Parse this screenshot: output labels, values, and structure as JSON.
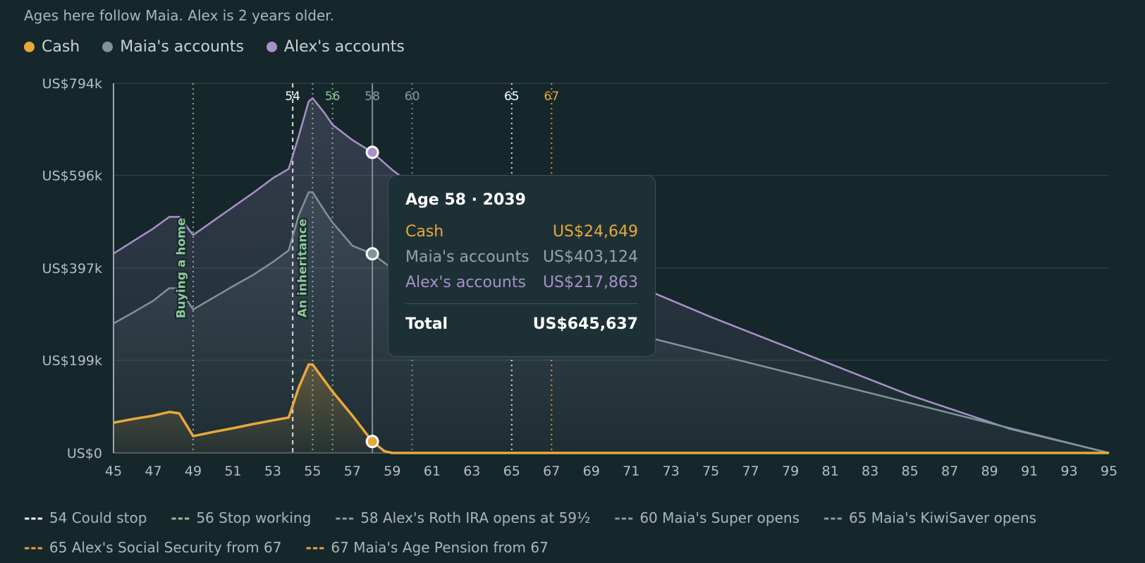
{
  "note": "Ages here follow Maia. Alex is 2 years older.",
  "legend": [
    {
      "label": "Cash",
      "color": "#e8a93a"
    },
    {
      "label": "Maia's accounts",
      "color": "#7e9499"
    },
    {
      "label": "Alex's accounts",
      "color": "#a890c9"
    }
  ],
  "chart_data": {
    "type": "area",
    "stacked": true,
    "xlim": [
      45,
      95
    ],
    "ylim": [
      0,
      794000
    ],
    "x_ticks": [
      45,
      47,
      49,
      51,
      53,
      55,
      57,
      59,
      61,
      63,
      65,
      67,
      69,
      71,
      73,
      75,
      77,
      79,
      81,
      83,
      85,
      87,
      89,
      91,
      93,
      95
    ],
    "y_ticks": [
      {
        "value": 0,
        "label": "US$0"
      },
      {
        "value": 199000,
        "label": "US$199k"
      },
      {
        "value": 397000,
        "label": "US$397k"
      },
      {
        "value": 596000,
        "label": "US$596k"
      },
      {
        "value": 794000,
        "label": "US$794k"
      }
    ],
    "series": [
      {
        "name": "Cash",
        "color": "#e8a93a",
        "points": [
          [
            45,
            65000
          ],
          [
            46,
            73000
          ],
          [
            47,
            80000
          ],
          [
            47.8,
            88000
          ],
          [
            48.3,
            85000
          ],
          [
            49,
            36000
          ],
          [
            50,
            45000
          ],
          [
            51,
            53000
          ],
          [
            52,
            62000
          ],
          [
            53,
            70000
          ],
          [
            53.8,
            76000
          ],
          [
            54.3,
            140000
          ],
          [
            54.8,
            190000
          ],
          [
            55,
            190000
          ],
          [
            55.6,
            155000
          ],
          [
            56,
            132000
          ],
          [
            57,
            80000
          ],
          [
            58,
            24649
          ],
          [
            58.6,
            4000
          ],
          [
            59,
            0
          ],
          [
            95,
            0
          ]
        ]
      },
      {
        "name": "Maia's accounts",
        "color": "#7e9499",
        "points": [
          [
            45,
            278000
          ],
          [
            46,
            302000
          ],
          [
            47,
            327000
          ],
          [
            47.8,
            354000
          ],
          [
            48.3,
            353000
          ],
          [
            49,
            308000
          ],
          [
            50,
            333000
          ],
          [
            51,
            358000
          ],
          [
            52,
            382000
          ],
          [
            53,
            410000
          ],
          [
            53.8,
            435000
          ],
          [
            54.3,
            510000
          ],
          [
            54.8,
            560000
          ],
          [
            55,
            560000
          ],
          [
            55.6,
            520000
          ],
          [
            56,
            495000
          ],
          [
            57,
            445000
          ],
          [
            58,
            427773
          ],
          [
            59,
            396000
          ],
          [
            60,
            375000
          ],
          [
            95,
            0
          ]
        ]
      },
      {
        "name": "Alex's accounts",
        "color": "#a890c9",
        "points": [
          [
            45,
            428000
          ],
          [
            46,
            455000
          ],
          [
            47,
            482000
          ],
          [
            47.8,
            507000
          ],
          [
            48.3,
            507000
          ],
          [
            49,
            468000
          ],
          [
            50,
            498000
          ],
          [
            51,
            528000
          ],
          [
            52,
            558000
          ],
          [
            53,
            590000
          ],
          [
            53.8,
            610000
          ],
          [
            54.3,
            680000
          ],
          [
            54.8,
            755000
          ],
          [
            55,
            762000
          ],
          [
            55.6,
            730000
          ],
          [
            56,
            705000
          ],
          [
            57,
            672000
          ],
          [
            58,
            645636
          ],
          [
            59,
            608000
          ],
          [
            60,
            575000
          ],
          [
            62,
            520000
          ],
          [
            65,
            450000
          ],
          [
            70,
            382000
          ],
          [
            75,
            292000
          ],
          [
            80,
            208000
          ],
          [
            85,
            124000
          ],
          [
            90,
            52000
          ],
          [
            95,
            0
          ]
        ]
      }
    ],
    "events": [
      {
        "age": 48.8,
        "label": "Buying a home"
      },
      {
        "age": 54.9,
        "label": "An inheritance"
      }
    ],
    "markers": [
      {
        "age": 54,
        "label": "54",
        "color": "#ffffff",
        "style": "dashed"
      },
      {
        "age": 55,
        "label": "",
        "color": "#8fc79a",
        "style": "dotted"
      },
      {
        "age": 56,
        "label": "56",
        "color": "#8fc79a",
        "style": "dotted"
      },
      {
        "age": 58,
        "label": "58",
        "color": "#8a9ca0",
        "style": "solid"
      },
      {
        "age": 60,
        "label": "60",
        "color": "#8a9ca0",
        "style": "dotted"
      },
      {
        "age": 65,
        "label": "65",
        "color": "#ffffff",
        "style": "dotted"
      },
      {
        "age": 67,
        "label": "67",
        "color": "#e8a93a",
        "style": "dotted"
      },
      {
        "age": 49,
        "label": "",
        "color": "#8fc79a",
        "style": "dotted"
      }
    ],
    "hover": {
      "age": 58,
      "cash": 24649,
      "maia": 427773,
      "alex": 645636
    }
  },
  "tooltip": {
    "title": "Age 58 · 2039",
    "rows": [
      {
        "label": "Cash",
        "value": "US$24,649",
        "color": "#e8a93a"
      },
      {
        "label": "Maia's accounts",
        "value": "US$403,124",
        "color": "#95a5a9"
      },
      {
        "label": "Alex's accounts",
        "value": "US$217,863",
        "color": "#a890c9"
      }
    ],
    "total_label": "Total",
    "total_value": "US$645,637"
  },
  "marker_legend": [
    {
      "dash": "---",
      "label": "54 Could stop",
      "color": "#ffffff"
    },
    {
      "dash": "---",
      "label": "56 Stop working",
      "color": "#8fc79a"
    },
    {
      "dash": "---",
      "label": "58 Alex's Roth IRA opens at 59½",
      "color": "#8a9ca0"
    },
    {
      "dash": "---",
      "label": "60 Maia's Super opens",
      "color": "#8a9ca0"
    },
    {
      "dash": "---",
      "label": "65 Maia's KiwiSaver opens",
      "color": "#8a9ca0"
    },
    {
      "dash": "---",
      "label": "65 Alex's Social Security from 67",
      "color": "#e8a93a"
    },
    {
      "dash": "---",
      "label": "67 Maia's Age Pension from 67",
      "color": "#e8a93a"
    }
  ]
}
